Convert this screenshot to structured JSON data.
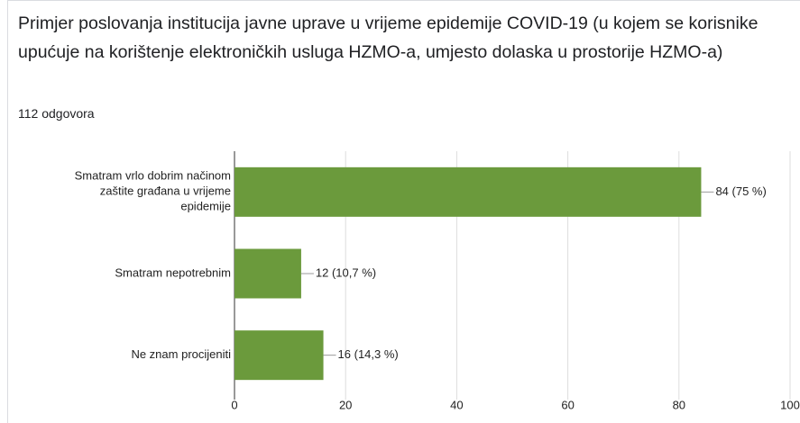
{
  "chart_data": {
    "type": "barh",
    "title": "Primjer poslovanja institucija javne uprave u vrijeme epidemije COVID-19 (u kojem se korisnike upućuje na korištenje elektroničkih usluga HZMO-a, umjesto dolaska u prostorije HZMO-a)",
    "subtitle": "112 odgovora",
    "categories": [
      "Smatram vrlo dobrim načinom zaštite građana u vrijeme epidemije",
      "Smatram nepotrebnim",
      "Ne znam procijeniti"
    ],
    "values": [
      84,
      12,
      16
    ],
    "value_labels": [
      "84 (75 %)",
      "12 (10,7 %)",
      "16 (14,3 %)"
    ],
    "color": "#6b9a3c",
    "xlim": [
      0,
      100
    ],
    "xticks": [
      0,
      20,
      40,
      60,
      80,
      100
    ],
    "grid": true
  }
}
